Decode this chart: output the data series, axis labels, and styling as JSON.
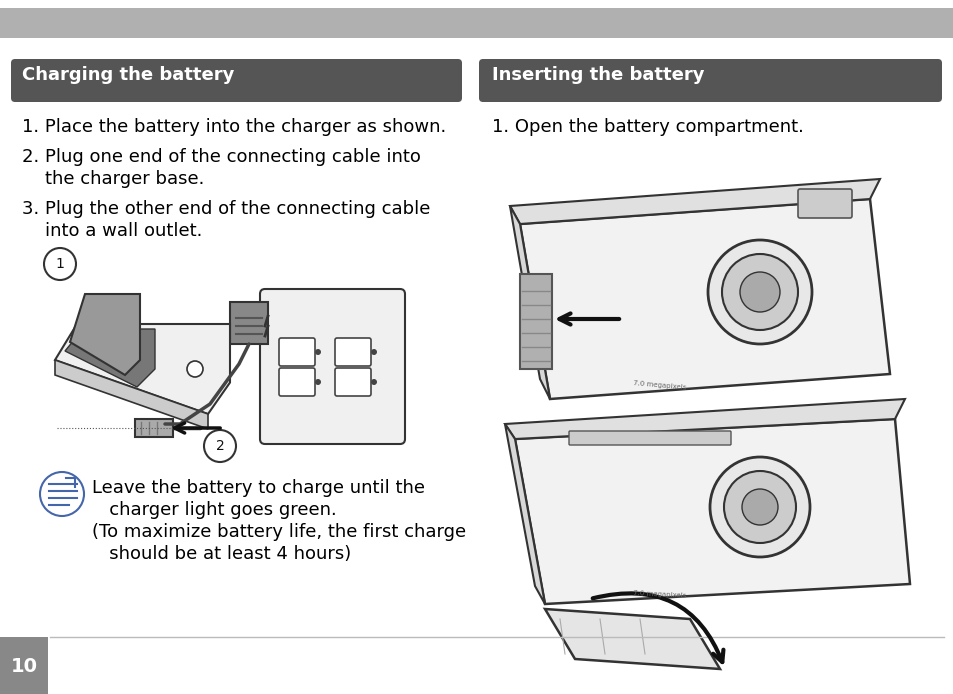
{
  "bg_color": "#ffffff",
  "top_bar_color": "#b0b0b0",
  "section_bar_color": "#555555",
  "left_section_title": "Charging the battery",
  "right_section_title": "Inserting the battery",
  "section_title_color": "#ffffff",
  "section_title_fontsize": 13,
  "step1_left": "1. Place the battery into the charger as shown.",
  "step2a_left": "2. Plug one end of the connecting cable into",
  "step2b_left": "    the charger base.",
  "step3a_left": "3. Plug the other end of the connecting cable",
  "step3b_left": "    into a wall outlet.",
  "step1_right": "1. Open the battery compartment.",
  "note_line1": "Leave the battery to charge until the",
  "note_line2": "   charger light goes green.",
  "note_line3": "(To maximize battery life, the first charge",
  "note_line4": "   should be at least 4 hours)",
  "text_color": "#000000",
  "body_fontsize": 13,
  "page_number": "10",
  "page_num_bg": "#888888",
  "divider_color": "#bbbbbb"
}
